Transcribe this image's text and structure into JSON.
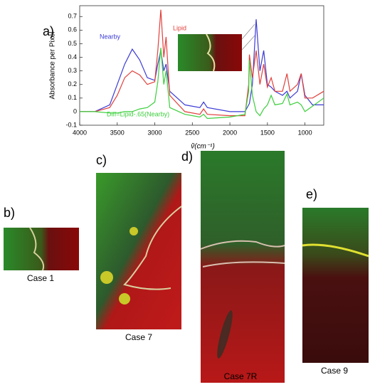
{
  "chart_data": {
    "type": "line",
    "panel_label": "a)",
    "xlabel": "ṽ(cm⁻¹)",
    "ylabel": "Absorbance per Pixel",
    "x": [
      4000,
      3800,
      3600,
      3500,
      3400,
      3300,
      3200,
      3100,
      3000,
      2960,
      2920,
      2880,
      2850,
      2800,
      2600,
      2400,
      2350,
      2300,
      2000,
      1800,
      1750,
      1740,
      1700,
      1650,
      1600,
      1550,
      1500,
      1450,
      1400,
      1300,
      1240,
      1200,
      1100,
      1050,
      1000,
      900,
      750
    ],
    "series": [
      {
        "name": "Nearby",
        "color": "#3b3bd6",
        "values": [
          0,
          0,
          0.05,
          0.2,
          0.35,
          0.46,
          0.38,
          0.25,
          0.23,
          0.35,
          0.45,
          0.3,
          0.35,
          0.15,
          0.05,
          0.03,
          0.07,
          0.03,
          0,
          0,
          0.05,
          0.06,
          0.2,
          0.68,
          0.3,
          0.45,
          0.2,
          0.18,
          0.15,
          0.12,
          0.15,
          0.1,
          0.15,
          0.28,
          0.12,
          0.05,
          0.05
        ]
      },
      {
        "name": "Lipid",
        "color": "#e0403c",
        "values": [
          0,
          0,
          0.03,
          0.12,
          0.25,
          0.3,
          0.27,
          0.2,
          0.22,
          0.45,
          0.75,
          0.4,
          0.55,
          0.12,
          0,
          -0.02,
          0.02,
          -0.02,
          -0.03,
          -0.03,
          0.2,
          0.42,
          0.25,
          0.45,
          0.2,
          0.35,
          0.18,
          0.25,
          0.15,
          0.15,
          0.28,
          0.15,
          0.2,
          0.28,
          0.1,
          0.1,
          0.15
        ]
      },
      {
        "name": "Diff=Lipid-.65(Nearby)",
        "color": "#3ccf3c",
        "values": [
          0,
          0,
          -0.01,
          -0.01,
          0,
          0,
          0.02,
          0.03,
          0.07,
          0.22,
          0.47,
          0.2,
          0.3,
          0.03,
          -0.02,
          -0.04,
          -0.02,
          -0.05,
          -0.04,
          -0.02,
          0.15,
          0.38,
          0.12,
          0,
          -0.03,
          0.02,
          0.05,
          0.12,
          0.05,
          0.06,
          0.13,
          0.05,
          0.07,
          0.05,
          0,
          0.04,
          0.1
        ]
      }
    ],
    "xlim": [
      4000,
      750
    ],
    "xticks": [
      4000,
      3500,
      3000,
      2500,
      2000,
      1500,
      1000
    ],
    "ylim": [
      -0.1,
      0.78
    ],
    "yticks": [
      -0.1,
      0,
      0.1,
      0.2,
      0.3,
      0.4,
      0.5,
      0.6,
      0.7
    ]
  },
  "panels": [
    {
      "label": "b)",
      "caption": "Case 1"
    },
    {
      "label": "c)",
      "caption": "Case 7"
    },
    {
      "label": "d)",
      "caption": "Case 7R"
    },
    {
      "label": "e)",
      "caption": "Case 9"
    }
  ]
}
